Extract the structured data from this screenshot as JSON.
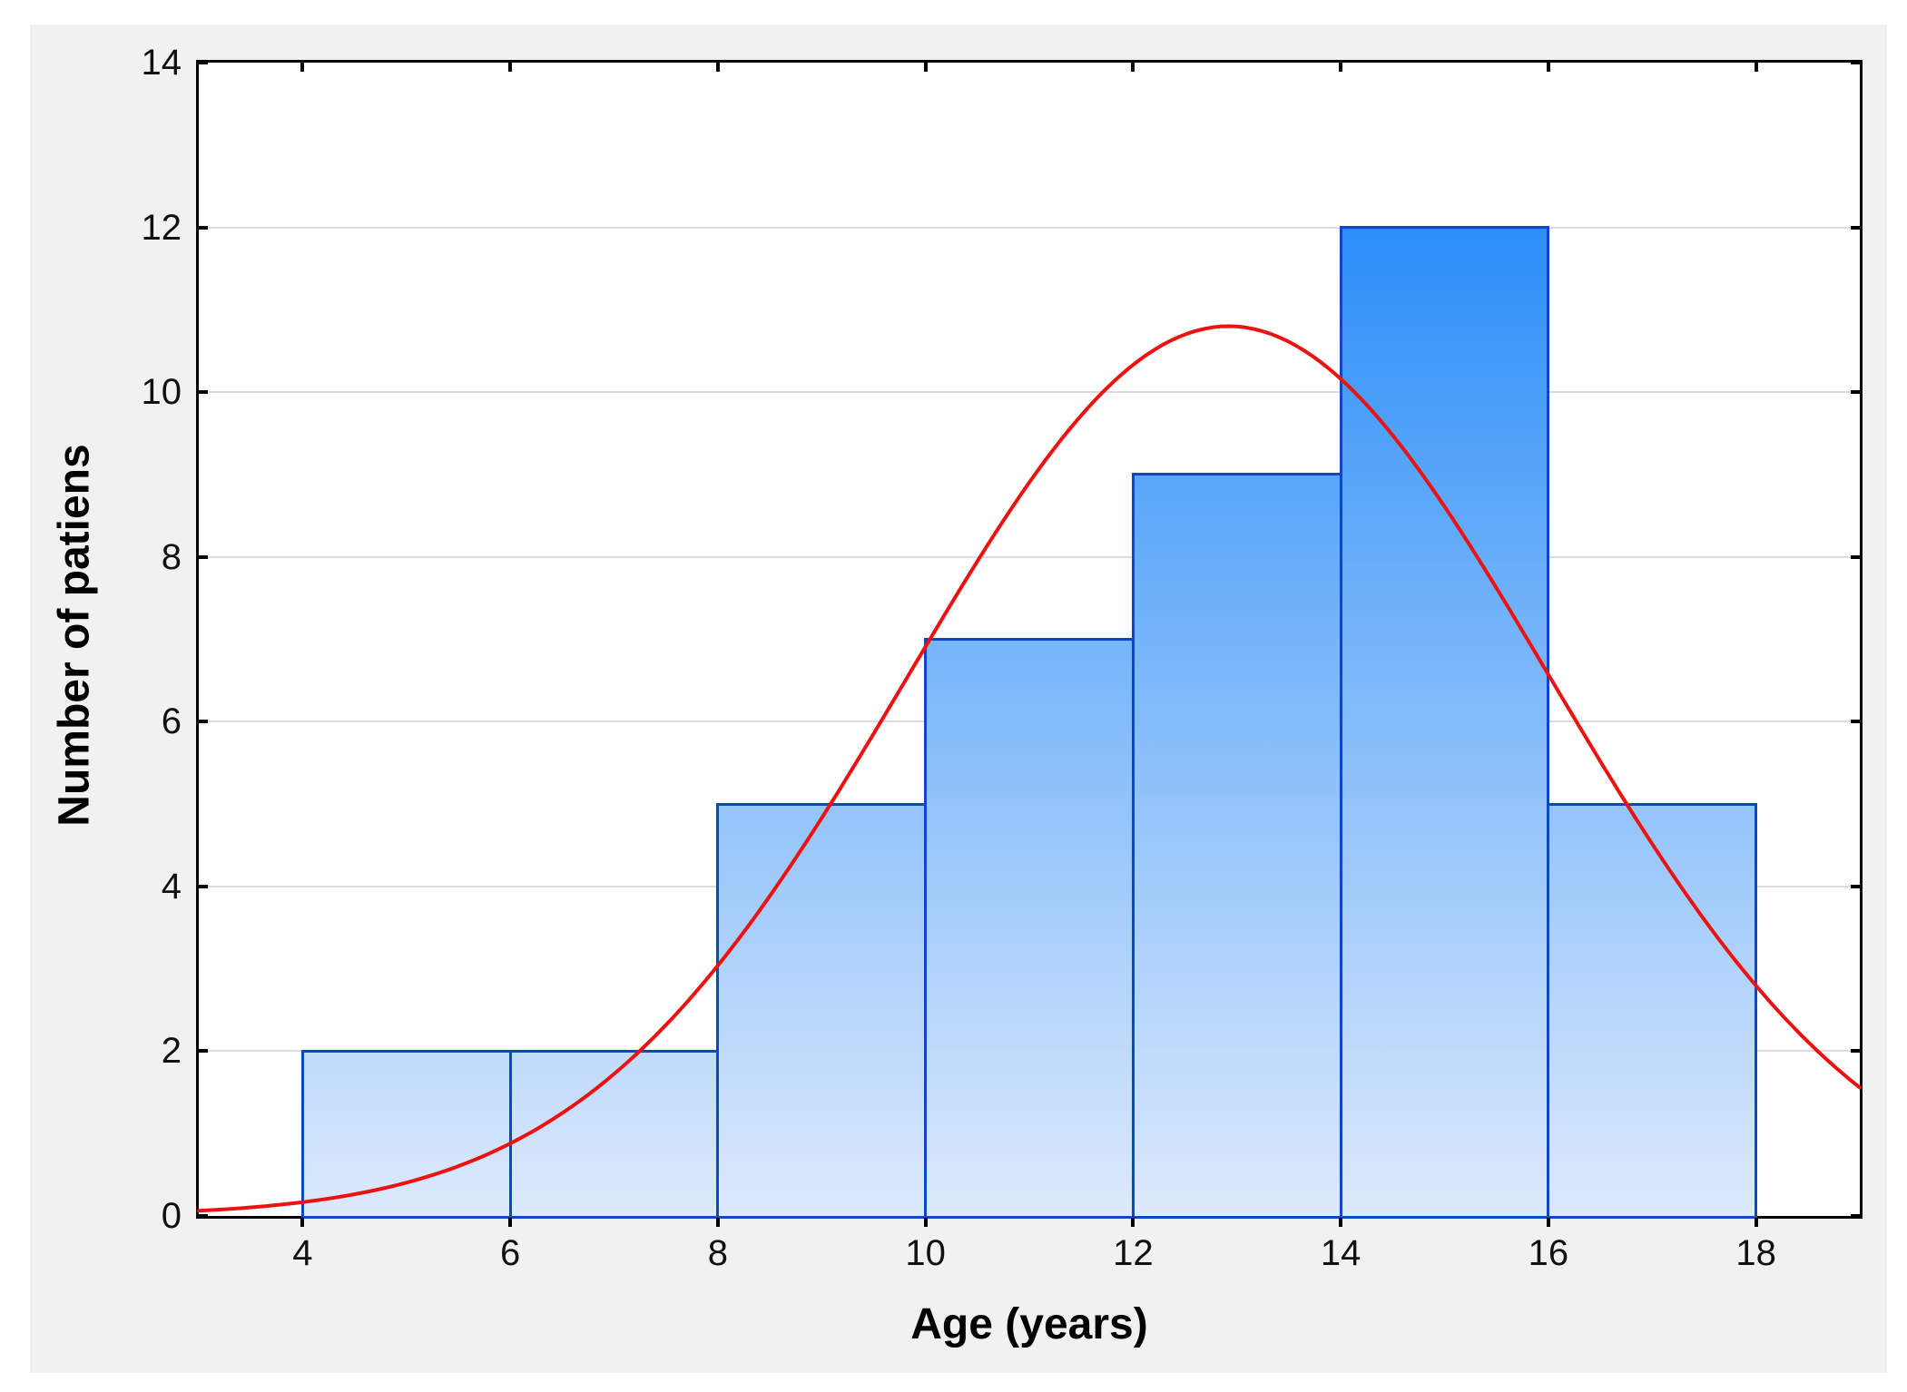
{
  "chart_data": {
    "type": "bar",
    "subtype": "histogram-with-normal-fit",
    "title": "",
    "xlabel": "Age (years)",
    "ylabel": "Number of patiens",
    "xlim": [
      3,
      19
    ],
    "ylim": [
      0,
      14
    ],
    "x_ticks": [
      4,
      6,
      8,
      10,
      12,
      14,
      16,
      18
    ],
    "y_ticks": [
      0,
      2,
      4,
      6,
      8,
      10,
      12,
      14
    ],
    "grid": "horizontal",
    "legend_position": "none",
    "categories": [
      "4-6",
      "6-8",
      "8-10",
      "10-12",
      "12-14",
      "14-16",
      "16-18"
    ],
    "values": [
      2,
      2,
      5,
      7,
      9,
      12,
      5
    ],
    "bins": [
      {
        "from": 4,
        "to": 6,
        "count": 2
      },
      {
        "from": 6,
        "to": 8,
        "count": 2
      },
      {
        "from": 8,
        "to": 10,
        "count": 5
      },
      {
        "from": 10,
        "to": 12,
        "count": 7
      },
      {
        "from": 12,
        "to": 14,
        "count": 9
      },
      {
        "from": 14,
        "to": 16,
        "count": 12
      },
      {
        "from": 16,
        "to": 18,
        "count": 5
      }
    ],
    "normal_fit": {
      "mean": 12.92,
      "sd": 3.09,
      "peak": 10.8
    },
    "colors": {
      "bar_border": "#0b47c6",
      "bar_fill_top": "#0d7ff7",
      "bar_fill_bottom": "#ddeafc",
      "curve": "#ec1212",
      "gridline": "#dcdcdc",
      "frame": "#000000",
      "panel_bg": "#f1f1f1",
      "plot_bg": "#ffffff",
      "text": "#101010"
    }
  }
}
